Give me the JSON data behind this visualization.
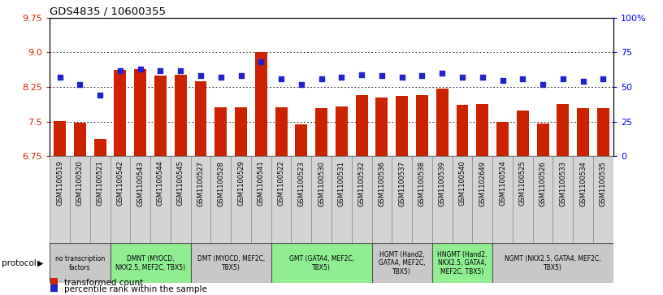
{
  "title": "GDS4835 / 10600355",
  "samples": [
    "GSM1100519",
    "GSM1100520",
    "GSM1100521",
    "GSM1100542",
    "GSM1100543",
    "GSM1100544",
    "GSM1100545",
    "GSM1100527",
    "GSM1100528",
    "GSM1100529",
    "GSM1100541",
    "GSM1100522",
    "GSM1100523",
    "GSM1100530",
    "GSM1100531",
    "GSM1100532",
    "GSM1100536",
    "GSM1100537",
    "GSM1100538",
    "GSM1100539",
    "GSM1100540",
    "GSM1102649",
    "GSM1100524",
    "GSM1100525",
    "GSM1100526",
    "GSM1100533",
    "GSM1100534",
    "GSM1100535"
  ],
  "bar_values": [
    7.52,
    7.47,
    7.12,
    8.62,
    8.63,
    8.5,
    8.52,
    8.38,
    7.82,
    7.82,
    9.01,
    7.82,
    7.45,
    7.79,
    7.83,
    8.07,
    8.03,
    8.05,
    8.08,
    8.22,
    7.87,
    7.88,
    7.5,
    7.74,
    7.46,
    7.88,
    7.79,
    7.8
  ],
  "dot_values": [
    57,
    52,
    44,
    62,
    63,
    62,
    62,
    58,
    57,
    58,
    68,
    56,
    52,
    56,
    57,
    59,
    58,
    57,
    58,
    60,
    57,
    57,
    55,
    56,
    52,
    56,
    54,
    56
  ],
  "ymin": 6.75,
  "ymax": 9.75,
  "yticks_left": [
    6.75,
    7.5,
    8.25,
    9.0,
    9.75
  ],
  "yticks_right": [
    0,
    25,
    50,
    75,
    100
  ],
  "bar_color": "#cc2200",
  "dot_color": "#2222cc",
  "protocol_groups": [
    {
      "label": "no transcription\nfactors",
      "start": 0,
      "end": 3,
      "color": "#c8c8c8"
    },
    {
      "label": "DMNT (MYOCD,\nNKX2.5, MEF2C, TBX5)",
      "start": 3,
      "end": 7,
      "color": "#90ee90"
    },
    {
      "label": "DMT (MYOCD, MEF2C,\nTBX5)",
      "start": 7,
      "end": 11,
      "color": "#c8c8c8"
    },
    {
      "label": "GMT (GATA4, MEF2C,\nTBX5)",
      "start": 11,
      "end": 16,
      "color": "#90ee90"
    },
    {
      "label": "HGMT (Hand2,\nGATA4, MEF2C,\nTBX5)",
      "start": 16,
      "end": 19,
      "color": "#c8c8c8"
    },
    {
      "label": "HNGMT (Hand2,\nNKX2.5, GATA4,\nMEF2C, TBX5)",
      "start": 19,
      "end": 22,
      "color": "#90ee90"
    },
    {
      "label": "NGMT (NKX2.5, GATA4, MEF2C,\nTBX5)",
      "start": 22,
      "end": 28,
      "color": "#c8c8c8"
    }
  ],
  "legend_red": "transformed count",
  "legend_blue": "percentile rank within the sample"
}
